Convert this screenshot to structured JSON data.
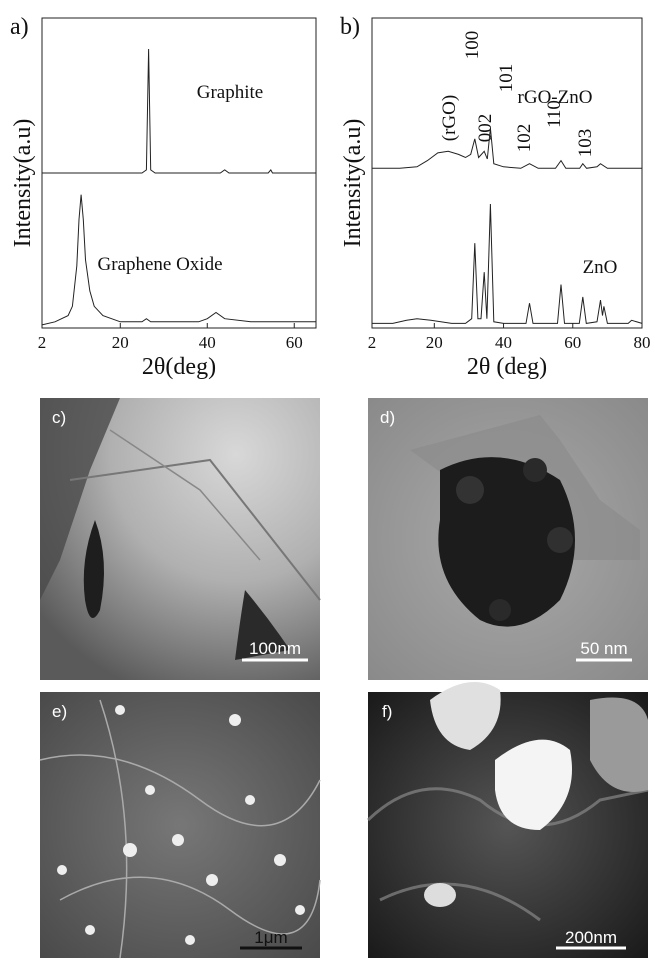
{
  "chart_data": [
    {
      "type": "line",
      "label": "a)",
      "xlabel": "2θ(deg)",
      "ylabel": "Intensity(a.u)",
      "xlim": [
        2,
        65
      ],
      "xticks": [
        2,
        20,
        40,
        60
      ],
      "ylim": [
        0,
        100
      ],
      "series": [
        {
          "name": "Graphite",
          "color": "#222222",
          "x": [
            2,
            20,
            25,
            26,
            26.5,
            27,
            28,
            40,
            43,
            44,
            45,
            54,
            54.6,
            55,
            65
          ],
          "values": [
            50,
            50,
            50,
            51,
            90,
            51,
            50,
            50,
            50,
            51,
            50,
            50,
            51,
            50,
            50
          ]
        },
        {
          "name": "Graphene Oxide",
          "color": "#222222",
          "x": [
            2,
            5,
            8,
            9,
            10,
            10.5,
            11,
            11.5,
            12,
            13,
            14,
            16,
            20,
            25,
            26,
            27,
            30,
            38,
            40,
            42,
            44,
            50,
            60,
            65
          ],
          "values": [
            1,
            2,
            4,
            7,
            20,
            35,
            43,
            35,
            22,
            12,
            7,
            4,
            2,
            2,
            3,
            2,
            2,
            2,
            3,
            5,
            3,
            2,
            2,
            2
          ]
        }
      ]
    },
    {
      "type": "line",
      "label": "b)",
      "xlabel": "2θ (deg)",
      "ylabel": "Intensity(a.u)",
      "xlim": [
        2,
        80
      ],
      "xticks": [
        2,
        20,
        40,
        60,
        80
      ],
      "ylim": [
        0,
        100
      ],
      "annotations": [
        "(rGO)",
        "100",
        "002",
        "101",
        "102",
        "110",
        "103"
      ],
      "series": [
        {
          "name": "rGO-ZnO",
          "color": "#222222",
          "x": [
            2,
            10,
            15,
            18,
            21,
            24,
            27,
            29,
            30.5,
            31.7,
            32.8,
            34.4,
            35.3,
            36.2,
            37.2,
            40,
            45,
            47.5,
            50,
            55,
            56.6,
            58,
            62,
            62.9,
            64,
            67,
            68,
            70,
            80
          ],
          "values": [
            51.5,
            51.5,
            52,
            54,
            56.5,
            57,
            56,
            55,
            56,
            61,
            55,
            57,
            54.5,
            64.5,
            53,
            52,
            51.5,
            53,
            51.5,
            51.5,
            54,
            51.5,
            51.5,
            53,
            51.5,
            52,
            53,
            51.5,
            51.5
          ]
        },
        {
          "name": "ZnO",
          "color": "#222222",
          "x": [
            2,
            8,
            12,
            15,
            19,
            25,
            29,
            30.8,
            31.7,
            32.6,
            33.5,
            34.4,
            35.2,
            36.2,
            37.2,
            40,
            46.5,
            47.5,
            48.5,
            55.6,
            56.6,
            57.6,
            61.9,
            62.9,
            63.9,
            67,
            68,
            68.6,
            69,
            70,
            76,
            77,
            80
          ],
          "values": [
            1.5,
            1.5,
            2.5,
            3,
            2.5,
            1.5,
            1.5,
            3,
            27.4,
            3,
            3,
            18,
            3,
            40,
            2,
            1.5,
            1.5,
            8,
            1.5,
            1.5,
            14,
            1.5,
            1.5,
            10,
            1.5,
            2,
            9,
            4,
            7,
            1.5,
            1.5,
            2.5,
            1.5
          ]
        }
      ]
    }
  ],
  "panels": [
    {
      "label": "c)",
      "scale_bar": "100nm"
    },
    {
      "label": "d)",
      "scale_bar": "50 nm"
    },
    {
      "label": "e)",
      "scale_bar": "1μm"
    },
    {
      "label": "f)",
      "scale_bar": "200nm"
    }
  ]
}
